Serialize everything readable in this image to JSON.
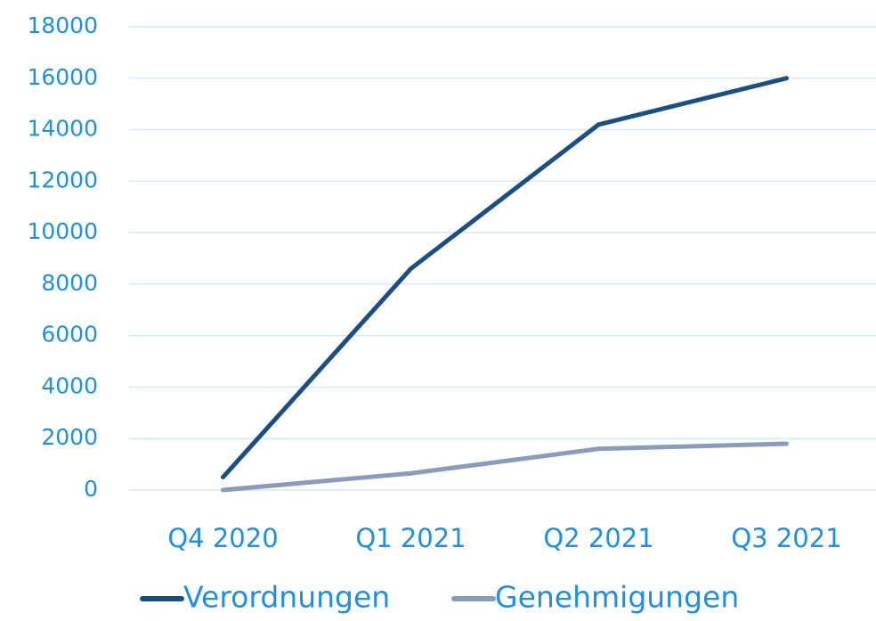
{
  "chart_data": {
    "type": "line",
    "categories": [
      "Q4 2020",
      "Q1 2021",
      "Q2 2021",
      "Q3 2021"
    ],
    "series": [
      {
        "name": "Verordnungen",
        "color": "#1b4f82",
        "values": [
          500,
          8600,
          14200,
          16000
        ]
      },
      {
        "name": "Genehmigungen",
        "color": "#8a9bbb",
        "values": [
          0,
          650,
          1600,
          1800
        ]
      }
    ],
    "ylim": [
      0,
      18000
    ],
    "yticks": [
      0,
      2000,
      4000,
      6000,
      8000,
      10000,
      12000,
      14000,
      16000,
      18000
    ],
    "grid": true,
    "legend": "bottom"
  }
}
